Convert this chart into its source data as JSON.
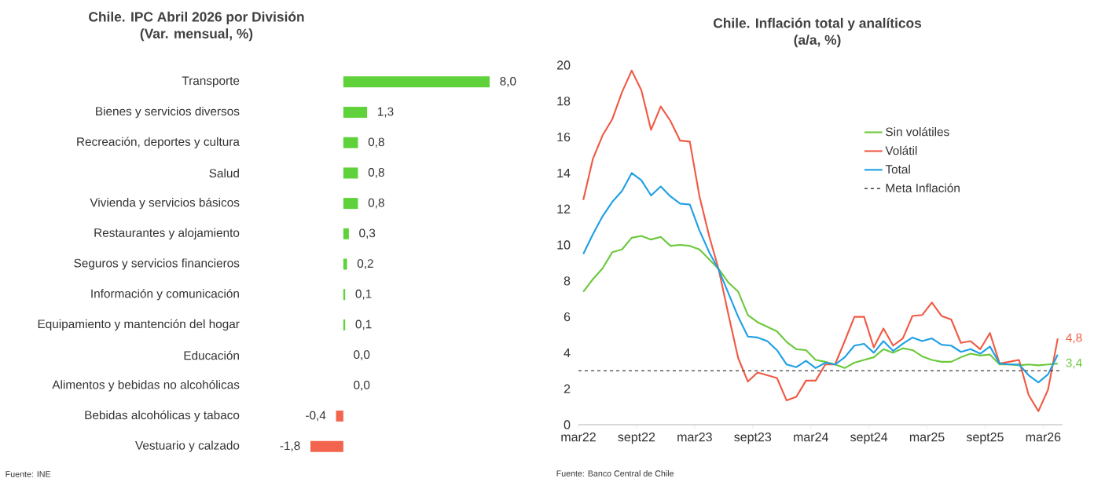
{
  "chart_data": [
    {
      "type": "bar",
      "orientation": "horizontal",
      "title": "Chile. IPC Abril 2026 por División",
      "subtitle": "(Var. mensual, %)",
      "categories": [
        "Transporte",
        "Bienes y servicios diversos",
        "Recreación, deportes y cultura",
        "Salud",
        "Vivienda y servicios básicos",
        "Restaurantes y alojamiento",
        "Seguros y servicios financieros",
        "Información y comunicación",
        "Equipamiento y mantención del hogar",
        "Educación",
        "Alimentos y bebidas no alcohólicas",
        "Bebidas alcohólicas y tabaco",
        "Vestuario y calzado"
      ],
      "values": [
        8.0,
        1.3,
        0.8,
        0.8,
        0.8,
        0.3,
        0.2,
        0.1,
        0.1,
        0.0,
        0.0,
        -0.4,
        -1.8
      ],
      "value_labels": [
        "8,0",
        "1,3",
        "0,8",
        "0,8",
        "0,8",
        "0,3",
        "0,2",
        "0,1",
        "0,1",
        "0,0",
        "0,0",
        "-0,4",
        "-1,8"
      ],
      "colors": [
        "#5fd13a",
        "#5fd13a",
        "#5fd13a",
        "#5fd13a",
        "#5fd13a",
        "#5fd13a",
        "#5fd13a",
        "#5fd13a",
        "#5fd13a",
        "#5fd13a",
        "#5fd13a",
        "#f2644e",
        "#f2644e"
      ],
      "annotations": [
        "Fuente: INE"
      ]
    },
    {
      "type": "line",
      "title": "Chile. Inflación total y analíticos",
      "subtitle": "(a/a, %)",
      "x": [
        "2022-03-16",
        "2022-04-16",
        "2022-05-16",
        "2022-06-16",
        "2022-07-16",
        "2022-08-16",
        "2022-09-16",
        "2022-10-16",
        "2022-11-16",
        "2022-12-16",
        "2023-01-16",
        "2023-02-16",
        "2023-03-16",
        "2023-04-16",
        "2023-05-16",
        "2023-06-16",
        "2023-07-16",
        "2023-08-16",
        "2023-09-16",
        "2023-10-16",
        "2023-11-16",
        "2023-12-16",
        "2024-01-16",
        "2024-02-16",
        "2024-03-16",
        "2024-04-16",
        "2024-05-16",
        "2024-06-16",
        "2024-07-16",
        "2024-08-16",
        "2024-09-16",
        "2024-10-16",
        "2024-11-16",
        "2024-12-16",
        "2025-01-16",
        "2025-02-16",
        "2025-03-16",
        "2025-04-16",
        "2025-05-16",
        "2025-06-16",
        "2025-07-16",
        "2025-08-16",
        "2025-09-16",
        "2025-10-16",
        "2025-11-16",
        "2025-12-16",
        "2026-01-16",
        "2026-02-16",
        "2026-03-16",
        "2026-04-16"
      ],
      "series": [
        {
          "name": "Sin volátiles",
          "color": "#6cc93e",
          "values": [
            7.4,
            8.1,
            8.7,
            9.6,
            9.75,
            10.4,
            10.5,
            10.3,
            10.45,
            9.95,
            10.0,
            9.95,
            9.75,
            9.2,
            8.65,
            7.9,
            7.4,
            6.1,
            5.7,
            5.45,
            5.2,
            4.6,
            4.2,
            4.15,
            3.6,
            3.5,
            3.35,
            3.15,
            3.45,
            3.6,
            3.75,
            4.2,
            4.0,
            4.25,
            4.15,
            3.8,
            3.6,
            3.5,
            3.5,
            3.75,
            3.95,
            3.85,
            3.9,
            3.35,
            3.35,
            3.3,
            3.35,
            3.3,
            3.35,
            3.4
          ],
          "value_labels": [
            null,
            null,
            null,
            null,
            null,
            null,
            null,
            null,
            null,
            null,
            null,
            null,
            null,
            null,
            null,
            null,
            null,
            null,
            null,
            null,
            null,
            null,
            null,
            null,
            null,
            null,
            null,
            null,
            null,
            null,
            null,
            null,
            null,
            null,
            null,
            null,
            null,
            null,
            null,
            null,
            null,
            null,
            null,
            null,
            null,
            null,
            null,
            null,
            null,
            "3,4"
          ]
        },
        {
          "name": "Volátil",
          "color": "#ef5a45",
          "values": [
            12.5,
            14.8,
            16.1,
            17.0,
            18.5,
            19.7,
            18.6,
            16.4,
            17.7,
            16.9,
            15.8,
            15.75,
            12.7,
            10.5,
            8.6,
            6.1,
            3.7,
            2.4,
            2.9,
            2.75,
            2.6,
            1.35,
            1.55,
            2.45,
            2.45,
            3.35,
            3.35,
            4.65,
            6.0,
            6.0,
            4.3,
            5.35,
            4.4,
            4.8,
            6.05,
            6.1,
            6.8,
            6.05,
            5.85,
            4.55,
            4.65,
            4.2,
            5.1,
            3.4,
            3.5,
            3.6,
            1.65,
            0.75,
            1.95,
            4.8
          ],
          "value_labels": [
            null,
            null,
            null,
            null,
            null,
            null,
            null,
            null,
            null,
            null,
            null,
            null,
            null,
            null,
            null,
            null,
            null,
            null,
            null,
            null,
            null,
            null,
            null,
            null,
            null,
            null,
            null,
            null,
            null,
            null,
            null,
            null,
            null,
            null,
            null,
            null,
            null,
            null,
            null,
            null,
            null,
            null,
            null,
            null,
            null,
            null,
            null,
            null,
            null,
            "4,8"
          ]
        },
        {
          "name": "Total",
          "color": "#1fa0e4",
          "values": [
            9.5,
            10.6,
            11.6,
            12.4,
            13.0,
            14.0,
            13.6,
            12.75,
            13.25,
            12.7,
            12.3,
            12.25,
            10.8,
            9.6,
            8.6,
            7.3,
            6.0,
            4.9,
            4.85,
            4.65,
            4.15,
            3.35,
            3.2,
            3.55,
            3.15,
            3.45,
            3.35,
            3.75,
            4.4,
            4.5,
            4.0,
            4.65,
            4.1,
            4.5,
            4.85,
            4.65,
            4.8,
            4.45,
            4.4,
            4.05,
            4.2,
            3.95,
            4.35,
            3.4,
            3.35,
            3.35,
            2.75,
            2.35,
            2.8,
            3.9
          ]
        }
      ],
      "xlim": [
        "2022-03",
        "2026-05"
      ],
      "xticks": [
        {
          "value": "2022-03",
          "label": "mar22"
        },
        {
          "value": "2022-09",
          "label": "sept22"
        },
        {
          "value": "2023-03",
          "label": "mar23"
        },
        {
          "value": "2023-09",
          "label": "sept23"
        },
        {
          "value": "2024-03",
          "label": "mar24"
        },
        {
          "value": "2024-09",
          "label": "sept24"
        },
        {
          "value": "2025-03",
          "label": "mar25"
        },
        {
          "value": "2025-09",
          "label": "sept25"
        },
        {
          "value": "2026-03",
          "label": "mar26"
        }
      ],
      "ylim": [
        0,
        20
      ],
      "yticks": [
        0,
        2,
        4,
        6,
        8,
        10,
        12,
        14,
        16,
        18,
        20
      ],
      "ref_lines": [
        {
          "axis": "y",
          "value": 3,
          "label": "Meta Inflación",
          "color": "#404040",
          "line_style": "dashed"
        }
      ],
      "legend": "top right",
      "annotations": [
        "Fuente: Banco Central de Chile"
      ]
    }
  ]
}
